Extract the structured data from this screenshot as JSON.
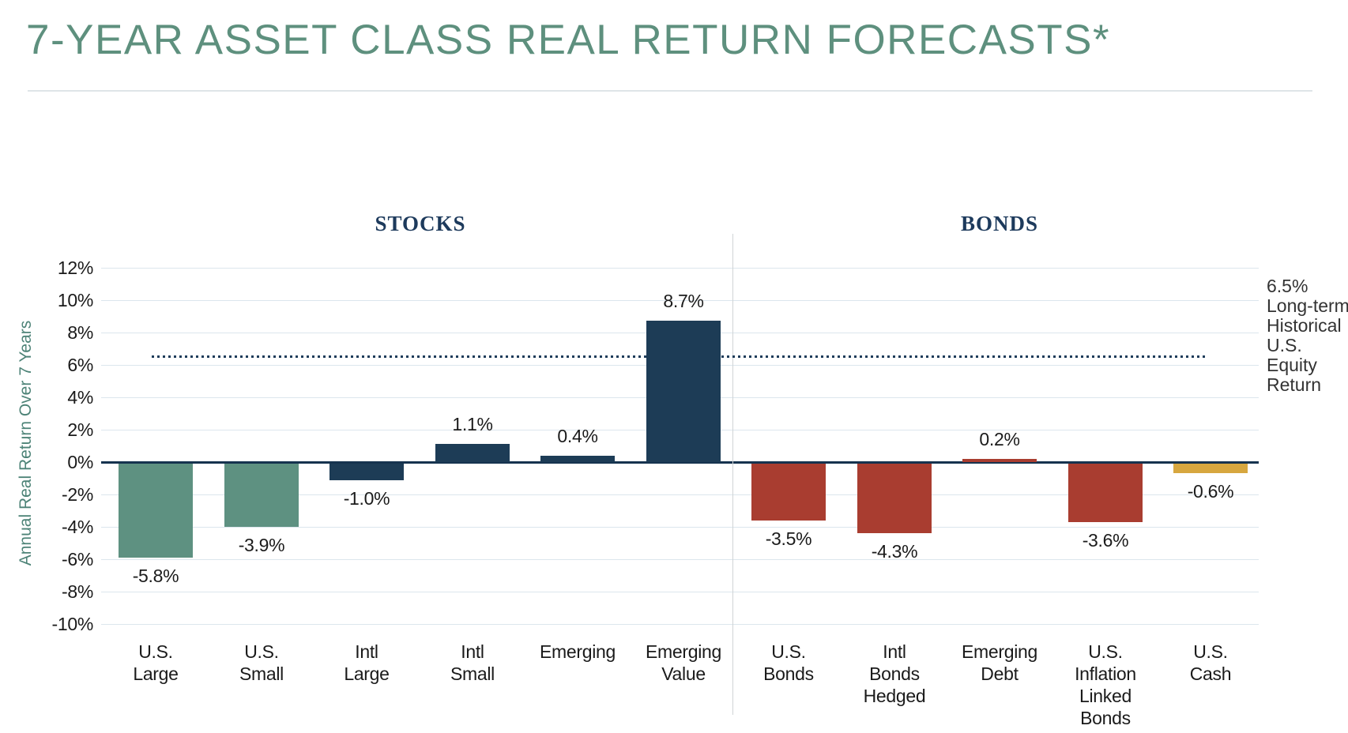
{
  "page": {
    "title": "7-YEAR ASSET CLASS REAL RETURN FORECASTS*"
  },
  "chart_data": {
    "type": "bar",
    "title": "7-YEAR ASSET CLASS REAL RETURN FORECASTS*",
    "xlabel": "",
    "ylabel": "Annual Real Return Over 7 Years",
    "ylim": [
      -10,
      12
    ],
    "ytick_step": 2,
    "yticks": [
      "12%",
      "10%",
      "8%",
      "6%",
      "4%",
      "2%",
      "0%",
      "-2%",
      "-4%",
      "-6%",
      "-8%",
      "-10%"
    ],
    "grid": true,
    "legend": false,
    "group_headers": [
      {
        "label": "STOCKS"
      },
      {
        "label": "BONDS"
      }
    ],
    "bars": [
      {
        "category": "U.S. Large",
        "label_lines": "U.S.\nLarge",
        "value": -5.8,
        "value_label": "-5.8%",
        "color": "#5e9181",
        "group": "STOCKS"
      },
      {
        "category": "U.S. Small",
        "label_lines": "U.S.\nSmall",
        "value": -3.9,
        "value_label": "-3.9%",
        "color": "#5e9181",
        "group": "STOCKS"
      },
      {
        "category": "Intl Large",
        "label_lines": "Intl\nLarge",
        "value": -1.0,
        "value_label": "-1.0%",
        "color": "#1d3c56",
        "group": "STOCKS"
      },
      {
        "category": "Intl Small",
        "label_lines": "Intl\nSmall",
        "value": 1.1,
        "value_label": "1.1%",
        "color": "#1d3c56",
        "group": "STOCKS"
      },
      {
        "category": "Emerging",
        "label_lines": "Emerging",
        "value": 0.4,
        "value_label": "0.4%",
        "color": "#1d3c56",
        "group": "STOCKS"
      },
      {
        "category": "Emerging Value",
        "label_lines": "Emerging\nValue",
        "value": 8.7,
        "value_label": "8.7%",
        "color": "#1d3c56",
        "group": "STOCKS"
      },
      {
        "category": "U.S. Bonds",
        "label_lines": "U.S.\nBonds",
        "value": -3.5,
        "value_label": "-3.5%",
        "color": "#a93d30",
        "group": "BONDS"
      },
      {
        "category": "Intl Bonds Hedged",
        "label_lines": "Intl\nBonds\nHedged",
        "value": -4.3,
        "value_label": "-4.3%",
        "color": "#a93d30",
        "group": "BONDS"
      },
      {
        "category": "Emerging Debt",
        "label_lines": "Emerging\nDebt",
        "value": 0.2,
        "value_label": "0.2%",
        "color": "#a93d30",
        "group": "BONDS"
      },
      {
        "category": "U.S. Inflation Linked Bonds",
        "label_lines": "U.S.\nInflation\nLinked\nBonds",
        "value": -3.6,
        "value_label": "-3.6%",
        "color": "#a93d30",
        "group": "BONDS"
      },
      {
        "category": "U.S. Cash",
        "label_lines": "U.S.\nCash",
        "value": -0.6,
        "value_label": "-0.6%",
        "color": "#d7a73f",
        "group": "BONDS"
      }
    ],
    "reference_line": {
      "value": 6.5,
      "style": "dotted",
      "color": "#1e3c5a",
      "annotation": "6.5% Long-term Historical U.S. Equity Return"
    },
    "colors": {
      "stocks_us": "#5e9181",
      "stocks_intl_emerging": "#1d3c56",
      "bonds": "#a93d30",
      "cash": "#d7a73f",
      "title": "#5e907e",
      "group_header": "#1d3a5c",
      "gridline": "#dce6ed",
      "zero_line": "#16334f"
    }
  }
}
